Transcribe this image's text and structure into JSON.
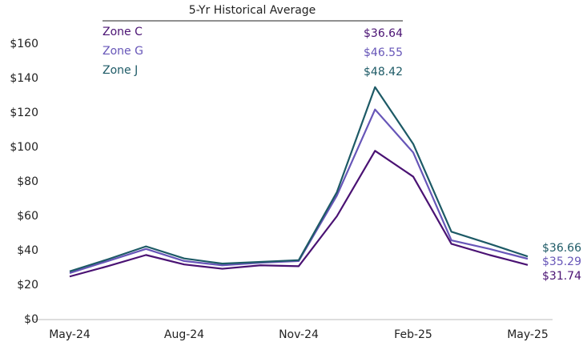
{
  "chart_data": {
    "type": "line",
    "legend_title": "5-Yr Historical Average",
    "categories": [
      "May-24",
      null,
      null,
      "Aug-24",
      null,
      null,
      "Nov-24",
      null,
      null,
      "Feb-25",
      null,
      null,
      "May-25"
    ],
    "ylim": [
      0,
      160
    ],
    "yticks": [
      {
        "value": 0,
        "label": "$0"
      },
      {
        "value": 20,
        "label": "$20"
      },
      {
        "value": 40,
        "label": "$40"
      },
      {
        "value": 60,
        "label": "$60"
      },
      {
        "value": 80,
        "label": "$80"
      },
      {
        "value": 100,
        "label": "$100"
      },
      {
        "value": 120,
        "label": "$120"
      },
      {
        "value": 140,
        "label": "$140"
      },
      {
        "value": 160,
        "label": "$160"
      }
    ],
    "grid": false,
    "series": [
      {
        "name": "Zone C",
        "color": "#4a1273",
        "historical_average": "$36.64",
        "values": [
          25,
          31,
          37.5,
          32,
          29.5,
          31.5,
          31,
          60,
          98,
          83,
          44,
          37.5,
          31.74
        ],
        "value_labels": [
          null,
          null,
          null,
          null,
          null,
          null,
          null,
          null,
          null,
          null,
          null,
          null,
          "$31.74"
        ]
      },
      {
        "name": "Zone G",
        "color": "#6756b8",
        "historical_average": "$46.55",
        "values": [
          27,
          34,
          41,
          34,
          31.5,
          33,
          34,
          72,
          122,
          97,
          46,
          41,
          35.29
        ],
        "value_labels": [
          null,
          null,
          null,
          null,
          null,
          null,
          null,
          null,
          null,
          null,
          null,
          null,
          "$35.29"
        ]
      },
      {
        "name": "Zone J",
        "color": "#1d5a66",
        "historical_average": "$48.42",
        "values": [
          28,
          35,
          42.5,
          35.5,
          32.5,
          33.5,
          34.5,
          74,
          135,
          102,
          51,
          44,
          36.66
        ],
        "value_labels": [
          null,
          null,
          null,
          null,
          null,
          null,
          null,
          null,
          null,
          null,
          null,
          null,
          "$36.66"
        ]
      }
    ]
  }
}
